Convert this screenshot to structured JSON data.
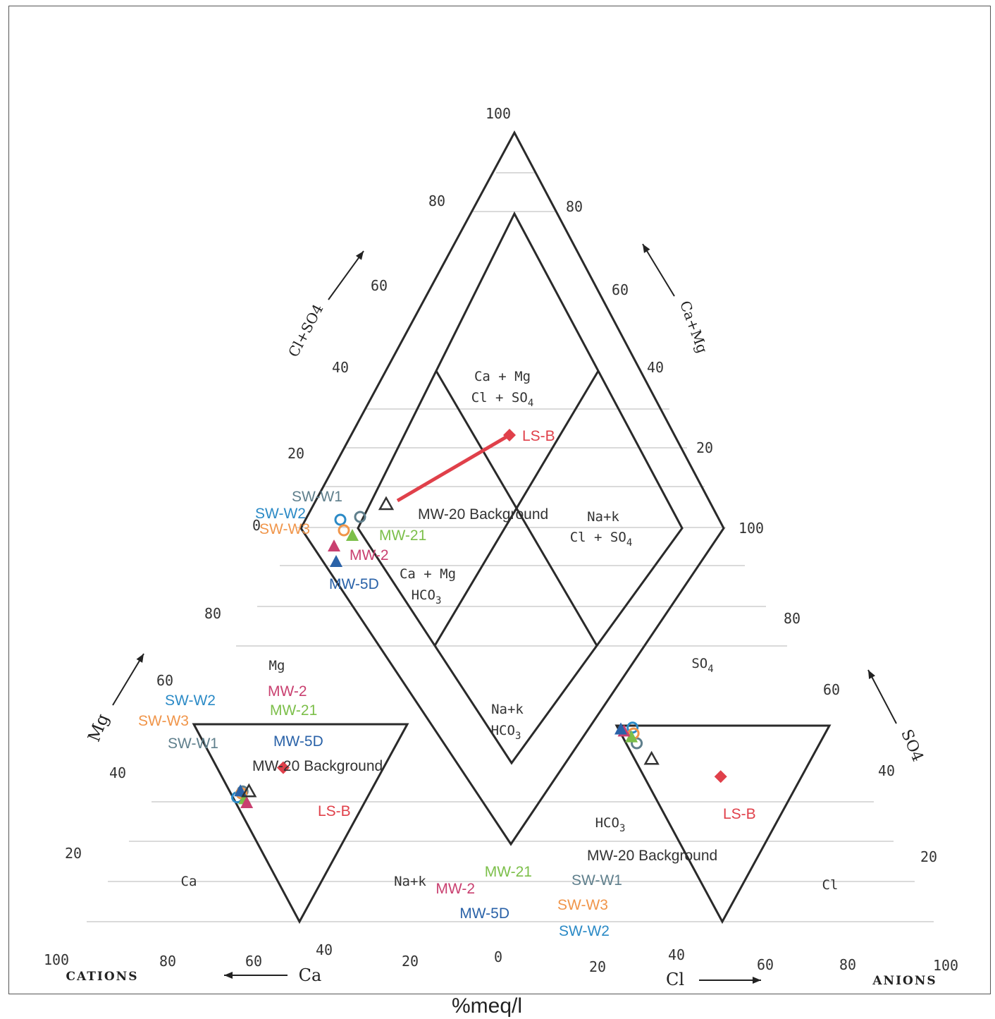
{
  "chart_data": {
    "type": "scatter",
    "subtype": "piper-trilinear",
    "unit_label": "%meq/l",
    "bottom_left_label": "CATIONS",
    "bottom_right_label": "ANIONS",
    "axis_names": {
      "ca": "Ca",
      "cl": "Cl",
      "mg": "Mg",
      "so4": "SO4",
      "cl_so4": "Cl+SO4",
      "ca_mg": "Ca+Mg"
    },
    "ticks": {
      "cation_bottom": [
        "100",
        "80",
        "60",
        "40",
        "20",
        "0"
      ],
      "anion_bottom": [
        "20",
        "40",
        "60",
        "80",
        "100"
      ],
      "mg_side": [
        "80",
        "60",
        "40",
        "20"
      ],
      "so4_side": [
        "80",
        "60",
        "40",
        "20"
      ],
      "diamond_left": [
        "100",
        "80",
        "60",
        "40",
        "20",
        "0"
      ],
      "diamond_right": [
        "80",
        "60",
        "40",
        "20",
        "100"
      ]
    },
    "field_labels": {
      "d_top_1": "Ca + Mg",
      "d_top_2": "Cl + SO",
      "d_top_sub": "4",
      "d_right_1": "Na+k",
      "d_right_2": "Cl + SO",
      "d_right_sub": "4",
      "d_left_1": "Ca + Mg",
      "d_left_2": "HCO",
      "d_left_sub": "3",
      "d_bottom_1": "Na+k",
      "d_bottom_2": "HCO",
      "d_bottom_sub": "3",
      "cat_mg": "Mg",
      "cat_ca": "Ca",
      "cat_nak": "Na+k",
      "an_so4": "SO",
      "an_so4_sub": "4",
      "an_hco3": "HCO",
      "an_hco3_sub": "3",
      "an_cl": "Cl"
    },
    "legend": "none",
    "colors": {
      "SW-W1": "#5f7f8c",
      "SW-W2": "#2b8ac6",
      "SW-W3": "#f0954a",
      "MW-21": "#7cbf4a",
      "MW-2": "#c94070",
      "MW-5D": "#2a62a8",
      "MW-20 Background": "#333333",
      "LS-B": "#e0404a"
    },
    "series": [
      {
        "name": "SW-W1",
        "marker": "open-circle",
        "cation": {
          "ca": 60,
          "mg": 34
        },
        "anion": {
          "cl": 5,
          "so4": 9
        }
      },
      {
        "name": "SW-W2",
        "marker": "open-circle",
        "cation": {
          "ca": 61,
          "mg": 37
        },
        "anion": {
          "cl": 7,
          "so4": 1
        }
      },
      {
        "name": "SW-W3",
        "marker": "open-circle",
        "cation": {
          "ca": 60,
          "mg": 35
        },
        "anion": {
          "cl": 6,
          "so4": 4
        }
      },
      {
        "name": "MW-21",
        "marker": "filled-triangle",
        "cation": {
          "ca": 57,
          "mg": 38
        },
        "anion": {
          "cl": 4,
          "so4": 6
        }
      },
      {
        "name": "MW-2",
        "marker": "filled-triangle",
        "cation": {
          "ca": 55,
          "mg": 40
        },
        "anion": {
          "cl": 2,
          "so4": 3
        }
      },
      {
        "name": "MW-5D",
        "marker": "filled-triangle",
        "cation": {
          "ca": 61,
          "mg": 34
        },
        "anion": {
          "cl": 1,
          "so4": 2
        }
      },
      {
        "name": "MW-20 Background",
        "marker": "open-triangle",
        "cation": {
          "ca": 57,
          "mg": 34
        },
        "anion": {
          "cl": 8,
          "so4": 17
        }
      },
      {
        "name": "LS-B",
        "marker": "filled-diamond",
        "cation": {
          "ca": 47,
          "mg": 22
        },
        "anion": {
          "cl": 36,
          "so4": 26
        }
      }
    ],
    "tie_line": {
      "from": "MW-20 Background",
      "to": "LS-B"
    }
  }
}
